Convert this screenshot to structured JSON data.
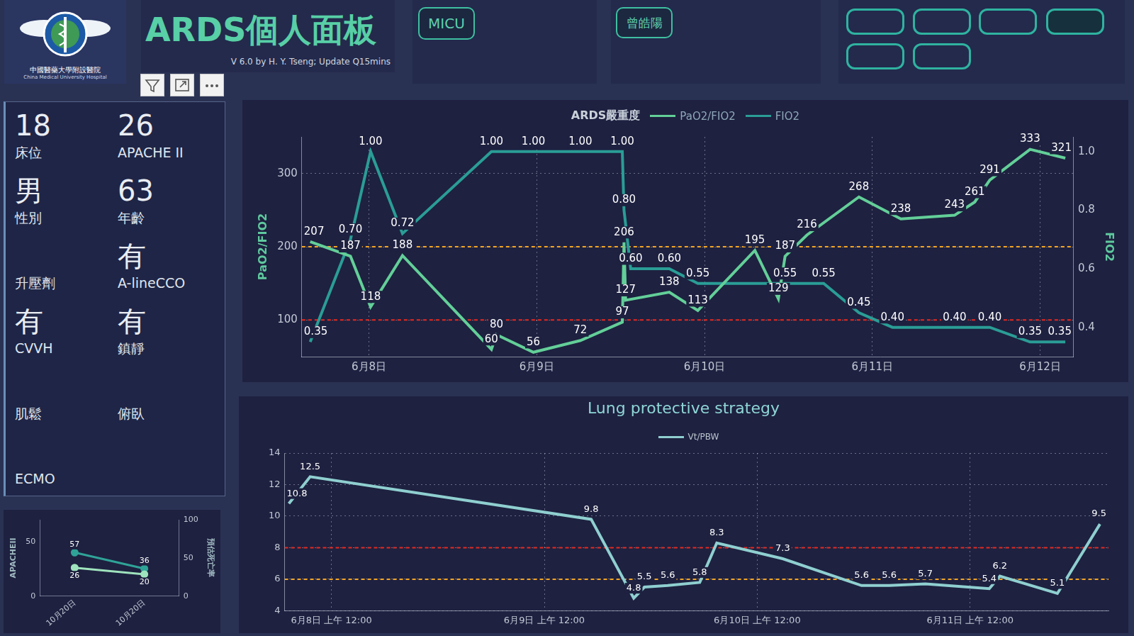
{
  "header": {
    "logo_text": [
      "中國醫藥大學附設醫院",
      "China Medical University Hospital"
    ],
    "title": "ARDS個人面板",
    "subtitle": "V 6.0 by H. Y. Tseng; Update Q15mins",
    "unit": "MICU",
    "patient": "曾皓陽"
  },
  "patient_panel": {
    "items": [
      {
        "value": 18,
        "label": "床位"
      },
      {
        "value": 26,
        "label": "APACHE II"
      },
      {
        "value": "男",
        "label": "性別"
      },
      {
        "value": 63,
        "label": "年齡"
      },
      {
        "value": null,
        "label": "升壓劑"
      },
      {
        "value": "有",
        "label": "A-lineCCO"
      },
      {
        "value": "有",
        "label": "CVVH"
      },
      {
        "value": "有",
        "label": "鎮靜"
      },
      {
        "value": null,
        "label": "肌鬆"
      },
      {
        "value": null,
        "label": "俯臥"
      },
      {
        "value": null,
        "label": "ECMO"
      }
    ]
  },
  "chart_data": [
    {
      "type": "line",
      "title": "ARDS嚴重度",
      "legend": "top",
      "y_label": "PaO2/FIO2",
      "y2_label": "FIO2",
      "xlim": [
        7.6,
        12.2
      ],
      "xticks": [
        {
          "value": 8,
          "label": "6月8日"
        },
        {
          "value": 9,
          "label": "6月9日"
        },
        {
          "value": 10,
          "label": "6月10日"
        },
        {
          "value": 11,
          "label": "6月11日"
        },
        {
          "value": 12,
          "label": "6月12日"
        }
      ],
      "ylim": [
        50,
        350
      ],
      "yticks": [
        100,
        200,
        300
      ],
      "y2lim": [
        0.3,
        1.05
      ],
      "y2ticks": [
        0.4,
        0.6,
        0.8,
        {
          "value": 1,
          "label": "1.0"
        }
      ],
      "grid": true,
      "data_labels": true,
      "reference_lines": [
        {
          "value": 200,
          "color": "#f5a623",
          "line_style": "dashed"
        },
        {
          "value": 100,
          "color": "#e8281e",
          "line_style": "dashed"
        }
      ],
      "series": [
        {
          "name": "PaO2/FIO2",
          "color": "#63cf98",
          "marker": "none",
          "x": [
            7.65,
            7.89,
            8.01,
            8.2,
            8.73,
            8.76,
            8.98,
            9.26,
            9.51,
            9.52,
            9.53,
            9.79,
            9.96,
            10.3,
            10.44,
            10.48,
            10.61,
            10.92,
            11.17,
            11.49,
            11.61,
            11.7,
            11.94,
            12.15
          ],
          "values": [
            207,
            187,
            118,
            188,
            60,
            80,
            56,
            72,
            97,
            206,
            127,
            138,
            113,
            195,
            129,
            187,
            216,
            268,
            238,
            243,
            261,
            291,
            333,
            321
          ]
        },
        {
          "name": "FIO2",
          "color": "#2a9d96",
          "marker": "none",
          "axis": "y2",
          "x": [
            7.65,
            7.89,
            8.01,
            8.2,
            8.73,
            8.98,
            9.26,
            9.51,
            9.52,
            9.56,
            9.79,
            9.96,
            10.48,
            10.71,
            10.92,
            11.12,
            11.49,
            11.7,
            11.94,
            12.15
          ],
          "values": [
            0.35,
            0.7,
            1,
            0.72,
            1,
            1,
            1,
            1,
            0.8,
            0.6,
            0.6,
            0.55,
            0.55,
            0.55,
            0.45,
            0.4,
            0.4,
            0.4,
            0.35,
            0.35
          ],
          "value_labels": [
            "0.35",
            "0.70",
            "1.00",
            "0.72",
            "1.00",
            "1.00",
            "1.00",
            "1.00",
            "0.80",
            "0.60",
            "0.60",
            "0.55",
            "0.55",
            "0.55",
            "0.45",
            "0.40",
            "0.40",
            "0.40",
            "0.35",
            "0.35"
          ]
        }
      ]
    },
    {
      "type": "line",
      "title": "Lung protective strategy",
      "legend": "top",
      "xlim": [
        7.78,
        11.65
      ],
      "xticks": [
        {
          "value": 8,
          "label": "6月8日 上午 12:00"
        },
        {
          "value": 9,
          "label": "6月9日 上午 12:00"
        },
        {
          "value": 10,
          "label": "6月10日 上午 12:00"
        },
        {
          "value": 11,
          "label": "6月11日 上午 12:00"
        }
      ],
      "ylim": [
        4,
        14
      ],
      "yticks": [
        4,
        6,
        8,
        10,
        12,
        14
      ],
      "grid": true,
      "data_labels": true,
      "reference_lines": [
        {
          "value": 8,
          "color": "#e8281e",
          "line_style": "dashed"
        },
        {
          "value": 6,
          "color": "#f5a623",
          "line_style": "dashed"
        }
      ],
      "series": [
        {
          "name": "Vt/PBW",
          "color": "#8fcfd0",
          "marker": "none",
          "x": [
            7.8,
            7.9,
            9.22,
            9.42,
            9.47,
            9.58,
            9.73,
            9.81,
            10.12,
            10.49,
            10.62,
            10.79,
            11.09,
            11.14,
            11.41,
            11.61
          ],
          "values": [
            10.8,
            12.5,
            9.8,
            4.8,
            5.5,
            5.6,
            5.8,
            8.3,
            7.3,
            5.6,
            5.6,
            5.7,
            5.4,
            6.2,
            5.1,
            9.5
          ]
        }
      ]
    },
    {
      "type": "line",
      "categories": [
        "10月20日",
        "10月20日"
      ],
      "y_label": "APACHEII",
      "y2_label": "預估死亡率",
      "ylim": [
        0,
        70
      ],
      "yticks": [
        0,
        50
      ],
      "y2lim": [
        0,
        100
      ],
      "y2ticks": [
        0,
        50,
        100
      ],
      "grid": false,
      "data_labels": true,
      "series": [
        {
          "color": "#9fe3bd",
          "marker": "circle",
          "values": [
            26,
            20
          ]
        },
        {
          "color": "#2fa397",
          "marker": "circle",
          "axis": "y2",
          "values": [
            57,
            36
          ]
        }
      ]
    }
  ]
}
